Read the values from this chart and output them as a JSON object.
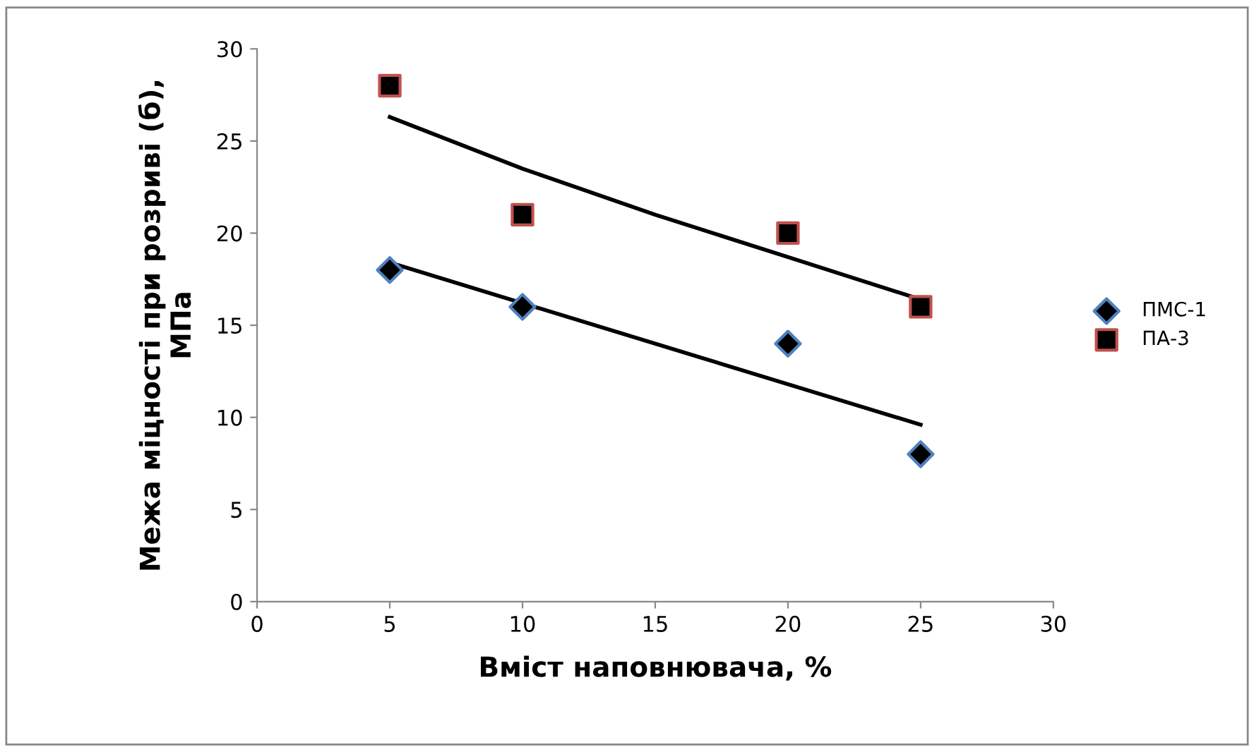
{
  "chart_data": {
    "type": "scatter",
    "xlabel": "Вміст наповнювача, %",
    "ylabel": "Межа міцності при розриві (б),\nМПа",
    "xlim": [
      0,
      30
    ],
    "ylim": [
      0,
      30
    ],
    "xticks": [
      0,
      5,
      10,
      15,
      20,
      25,
      30
    ],
    "yticks": [
      0,
      5,
      10,
      15,
      20,
      25,
      30
    ],
    "grid": false,
    "legend": "right",
    "series": [
      {
        "name": "ПМС-1",
        "marker": "diamond",
        "color": "#000000",
        "x": [
          5,
          10,
          20,
          25
        ],
        "values": [
          18,
          16,
          14,
          8
        ]
      },
      {
        "name": "ПА-3",
        "marker": "square",
        "color": "#000000",
        "x": [
          5,
          10,
          20,
          25
        ],
        "values": [
          28,
          21,
          20,
          16
        ]
      },
      {
        "type": "line",
        "color": "#000000",
        "x": [
          5,
          25
        ],
        "values": [
          18.4,
          9.6
        ]
      },
      {
        "type": "line",
        "color": "#000000",
        "x": [
          5,
          10,
          15,
          20,
          25
        ],
        "values": [
          26.3,
          23.5,
          21,
          18.7,
          16.4
        ]
      }
    ]
  }
}
